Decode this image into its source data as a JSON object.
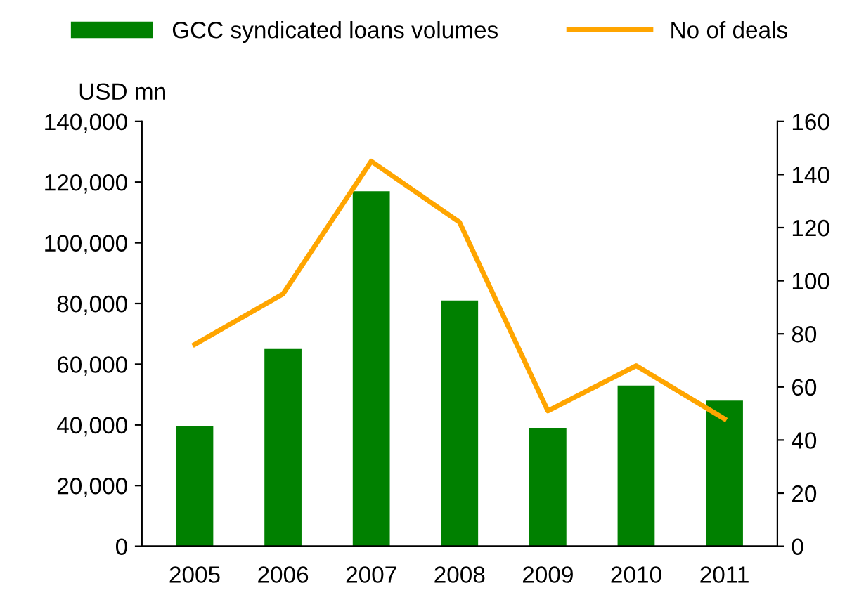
{
  "chart_data": {
    "type": "bar",
    "categories": [
      "2005",
      "2006",
      "2007",
      "2008",
      "2009",
      "2010",
      "2011"
    ],
    "ylabel": "USD mn",
    "series": [
      {
        "name": "GCC syndicated loans volumes",
        "color": "#008000",
        "values": [
          39500,
          65000,
          117000,
          81000,
          39000,
          53000,
          48000
        ]
      },
      {
        "name": "No of deals",
        "color": "#ffa500",
        "type": "line",
        "axis": "y2",
        "values": [
          76,
          95,
          145,
          122,
          51,
          68,
          48
        ]
      }
    ],
    "ylim": [
      0,
      140000
    ],
    "yticks": [
      {
        "value": 0,
        "label": "0"
      },
      {
        "value": 20000,
        "label": "20,000"
      },
      {
        "value": 40000,
        "label": "40,000"
      },
      {
        "value": 60000,
        "label": "60,000"
      },
      {
        "value": 80000,
        "label": "80,000"
      },
      {
        "value": 100000,
        "label": "100,000"
      },
      {
        "value": 120000,
        "label": "120,000"
      },
      {
        "value": 140000,
        "label": "140,000"
      }
    ],
    "y2lim": [
      0,
      160
    ],
    "y2ticks": [
      0,
      20,
      40,
      60,
      80,
      100,
      120,
      140,
      160
    ],
    "legend": "top",
    "grid": false,
    "marker": "none",
    "line_style": "solid"
  }
}
